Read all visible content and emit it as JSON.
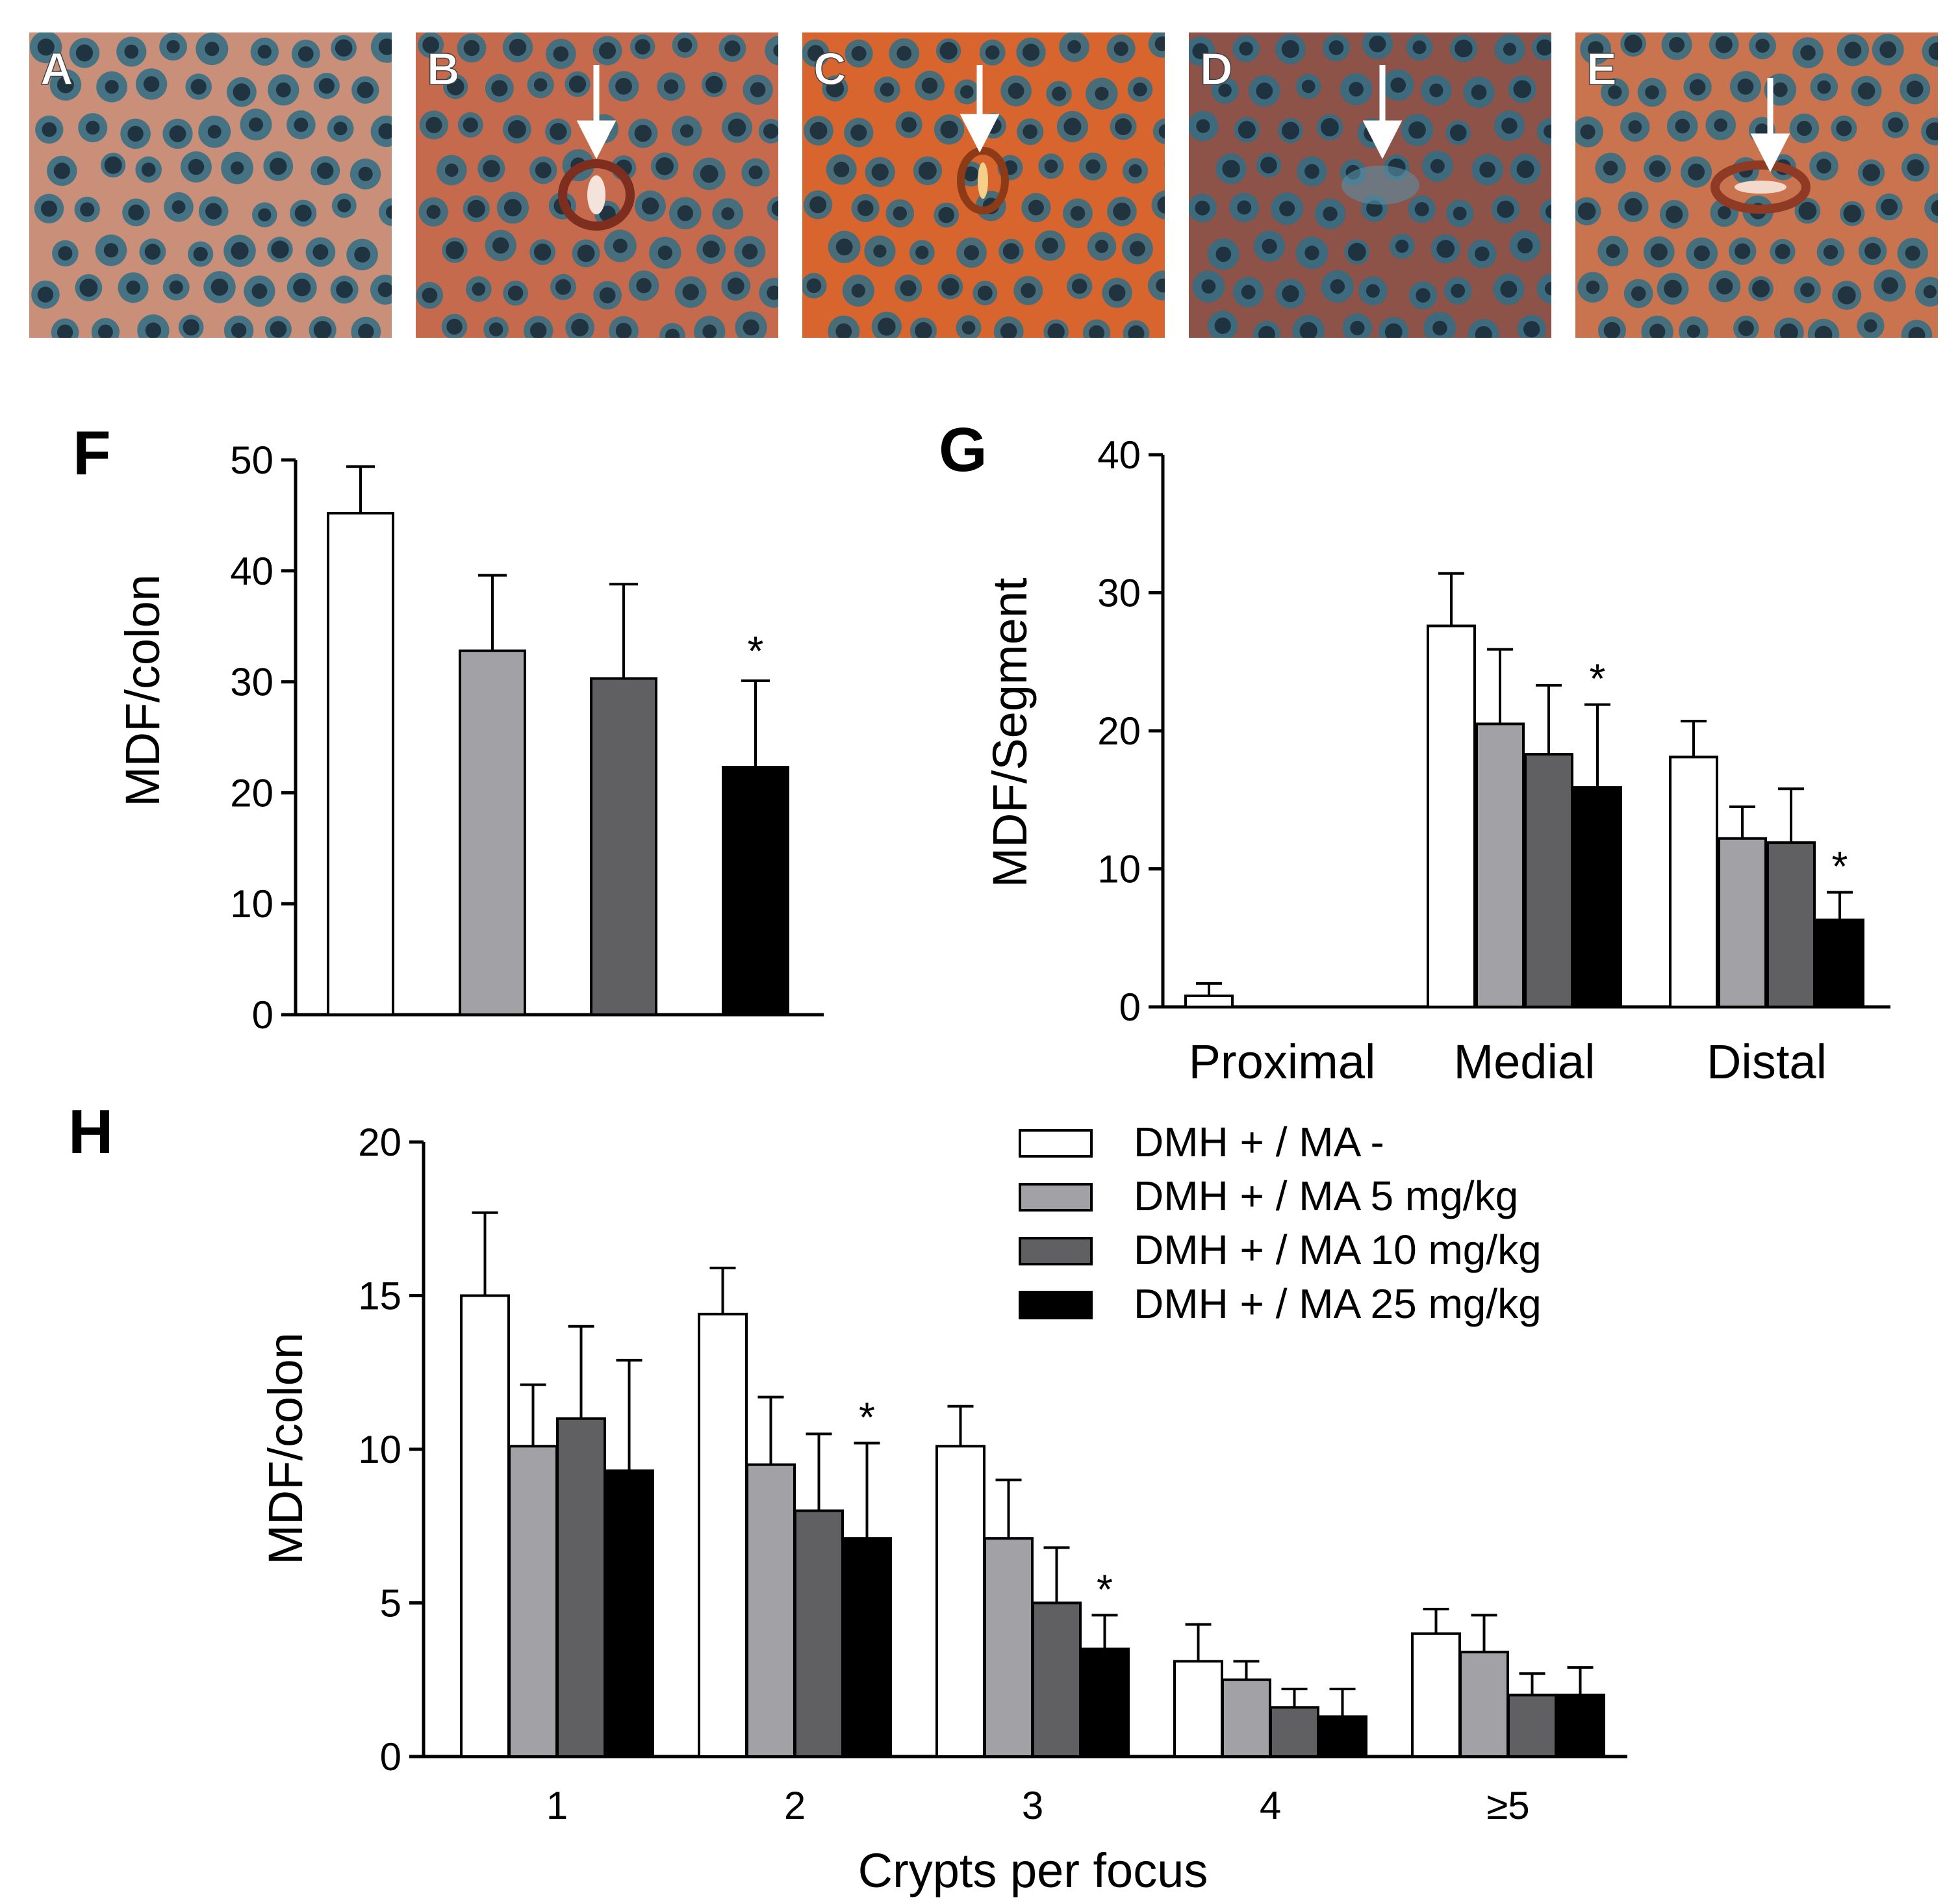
{
  "colors": {
    "series": [
      "#ffffff",
      "#a2a2a6",
      "#606062",
      "#000000"
    ],
    "tissue_base": "#c9704f",
    "tissue_dark": "#8a3f2c",
    "crypt_blue": "#2f6f86",
    "crypt_core": "#1c2c38"
  },
  "photo_panels": [
    {
      "label": "A",
      "has_arrow": false,
      "tone": "#c98f78",
      "arrow_icon": "down-arrow-icon"
    },
    {
      "label": "B",
      "has_arrow": true,
      "tone": "#c56a4c",
      "arrow_icon": "down-arrow-icon"
    },
    {
      "label": "C",
      "has_arrow": true,
      "tone": "#d8652d",
      "arrow_icon": "down-arrow-icon"
    },
    {
      "label": "D",
      "has_arrow": true,
      "tone": "#8d5248",
      "arrow_icon": "down-arrow-icon"
    },
    {
      "label": "E",
      "has_arrow": true,
      "tone": "#c9734f",
      "arrow_icon": "down-arrow-icon"
    }
  ],
  "chart_data": [
    {
      "id": "F",
      "panel_label": "F",
      "type": "bar",
      "ylabel": "MDF/colon",
      "xlabel": "",
      "ylim": [
        0,
        50
      ],
      "yticks": [
        "0",
        "10",
        "20",
        "30",
        "40",
        "50"
      ],
      "series": [
        {
          "name": "DMH + / MA -",
          "value": 45.2,
          "error": 4.2,
          "sig": ""
        },
        {
          "name": "DMH + / MA 5 mg/kg",
          "value": 32.8,
          "error": 6.8,
          "sig": ""
        },
        {
          "name": "DMH + / MA 10 mg/kg",
          "value": 30.3,
          "error": 8.5,
          "sig": ""
        },
        {
          "name": "DMH + / MA 25 mg/kg",
          "value": 22.3,
          "error": 7.8,
          "sig": "*"
        }
      ]
    },
    {
      "id": "G",
      "panel_label": "G",
      "type": "bar",
      "ylabel": "MDF/Segment",
      "xlabel": "",
      "ylim": [
        0,
        40
      ],
      "yticks": [
        "0",
        "10",
        "20",
        "30",
        "40"
      ],
      "categories": [
        "Proximal",
        "Medial",
        "Distal"
      ],
      "series": [
        {
          "name": "DMH + / MA -",
          "values": [
            0.8,
            27.6,
            18.1
          ],
          "errors": [
            0.9,
            3.8,
            2.6
          ],
          "sig": [
            "",
            "",
            ""
          ]
        },
        {
          "name": "DMH + / MA 5 mg/kg",
          "values": [
            0,
            20.5,
            12.2
          ],
          "errors": [
            0,
            5.4,
            2.3
          ],
          "sig": [
            "",
            "",
            ""
          ]
        },
        {
          "name": "DMH + / MA 10 mg/kg",
          "values": [
            0,
            18.3,
            11.9
          ],
          "errors": [
            0,
            5.0,
            3.9
          ],
          "sig": [
            "",
            "",
            ""
          ]
        },
        {
          "name": "DMH + / MA 25 mg/kg",
          "values": [
            0,
            15.9,
            6.3
          ],
          "errors": [
            0,
            6.0,
            2.0
          ],
          "sig": [
            "",
            "*",
            "*"
          ]
        }
      ]
    },
    {
      "id": "H",
      "panel_label": "H",
      "type": "bar",
      "ylabel": "MDF/colon",
      "xlabel": "Crypts per focus",
      "ylim": [
        0,
        20
      ],
      "yticks": [
        "0",
        "5",
        "10",
        "15",
        "20"
      ],
      "categories": [
        "1",
        "2",
        "3",
        "4",
        "≥5"
      ],
      "series": [
        {
          "name": "DMH + / MA -",
          "values": [
            15.0,
            14.4,
            10.1,
            3.1,
            4.0
          ],
          "errors": [
            2.7,
            1.5,
            1.3,
            1.2,
            0.8
          ],
          "sig": [
            "",
            "",
            "",
            "",
            ""
          ]
        },
        {
          "name": "DMH + / MA 5 mg/kg",
          "values": [
            10.1,
            9.5,
            7.1,
            2.5,
            3.4
          ],
          "errors": [
            2.0,
            2.2,
            1.9,
            0.6,
            1.2
          ],
          "sig": [
            "",
            "",
            "",
            "",
            ""
          ]
        },
        {
          "name": "DMH + / MA 10 mg/kg",
          "values": [
            11.0,
            8.0,
            5.0,
            1.6,
            2.0
          ],
          "errors": [
            3.0,
            2.5,
            1.8,
            0.6,
            0.7
          ],
          "sig": [
            "",
            "",
            "",
            "",
            ""
          ]
        },
        {
          "name": "DMH + / MA 25 mg/kg",
          "values": [
            9.3,
            7.1,
            3.5,
            1.3,
            2.0
          ],
          "errors": [
            3.6,
            3.1,
            1.1,
            0.9,
            0.9
          ],
          "sig": [
            "",
            "*",
            "*",
            "",
            ""
          ]
        }
      ],
      "legend": {
        "position": "top-right",
        "entries": [
          "DMH + / MA -",
          "DMH + / MA 5 mg/kg",
          "DMH + / MA 10 mg/kg",
          "DMH + / MA 25 mg/kg"
        ]
      }
    }
  ]
}
